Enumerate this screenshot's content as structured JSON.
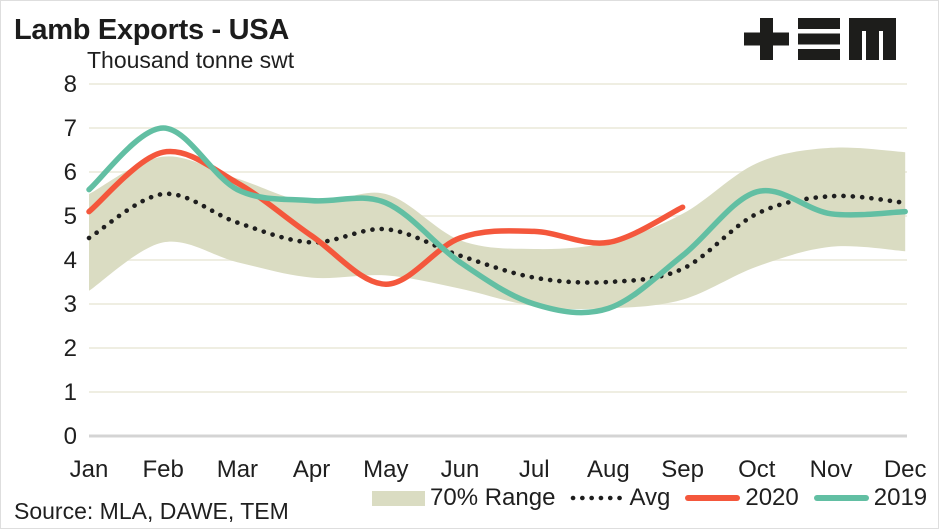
{
  "header": {
    "title": "Lamb Exports - USA",
    "subtitle": "Thousand tonne swt",
    "logo": "TEM"
  },
  "footer": {
    "source": "Source: MLA, DAWE, TEM"
  },
  "legend": {
    "items": [
      {
        "label": "70% Range",
        "swatch": "band"
      },
      {
        "label": "Avg",
        "swatch": "dotted"
      },
      {
        "label": "2020",
        "swatch": "line-2020"
      },
      {
        "label": "2019",
        "swatch": "line-2019"
      }
    ]
  },
  "colors": {
    "band": "#DADCC2",
    "avg": "#1E1E1E",
    "y2020": "#F4573C",
    "y2019": "#62BFA3",
    "grid": "#EFEEE2",
    "axis": "#D4D4D4",
    "text": "#1F1F1F",
    "logo": "#1D1D1B"
  },
  "chart_data": {
    "type": "line",
    "title": "Lamb Exports - USA",
    "ylabel": "Thousand tonne swt",
    "xlabel": "",
    "categories": [
      "Jan",
      "Feb",
      "Mar",
      "Apr",
      "May",
      "Jun",
      "Jul",
      "Aug",
      "Sep",
      "Oct",
      "Nov",
      "Dec"
    ],
    "ylim": [
      0,
      8
    ],
    "yticks": [
      0,
      1,
      2,
      3,
      4,
      5,
      6,
      7,
      8
    ],
    "grid": true,
    "legend_position": "bottom-right",
    "band": {
      "name": "70% Range",
      "color": "#DADCC2",
      "high": [
        5.5,
        6.35,
        5.85,
        5.3,
        5.5,
        4.45,
        4.25,
        4.4,
        5.05,
        6.2,
        6.55,
        6.45
      ],
      "low": [
        3.3,
        4.4,
        3.95,
        3.6,
        3.65,
        3.35,
        2.95,
        2.9,
        3.1,
        3.85,
        4.3,
        4.2
      ]
    },
    "series": [
      {
        "name": "Avg",
        "style": "dotted",
        "color": "#1E1E1E",
        "values": [
          4.5,
          5.5,
          4.85,
          4.4,
          4.7,
          4.1,
          3.6,
          3.5,
          3.8,
          5.05,
          5.45,
          5.3
        ]
      },
      {
        "name": "2020",
        "style": "solid",
        "color": "#F4573C",
        "values": [
          5.1,
          6.45,
          5.75,
          4.55,
          3.45,
          4.5,
          4.65,
          4.4,
          5.2,
          null,
          null,
          null
        ]
      },
      {
        "name": "2019",
        "style": "solid",
        "color": "#62BFA3",
        "values": [
          5.6,
          7.0,
          5.6,
          5.35,
          5.3,
          3.95,
          3.0,
          2.9,
          4.1,
          5.55,
          5.05,
          5.1
        ]
      }
    ]
  }
}
